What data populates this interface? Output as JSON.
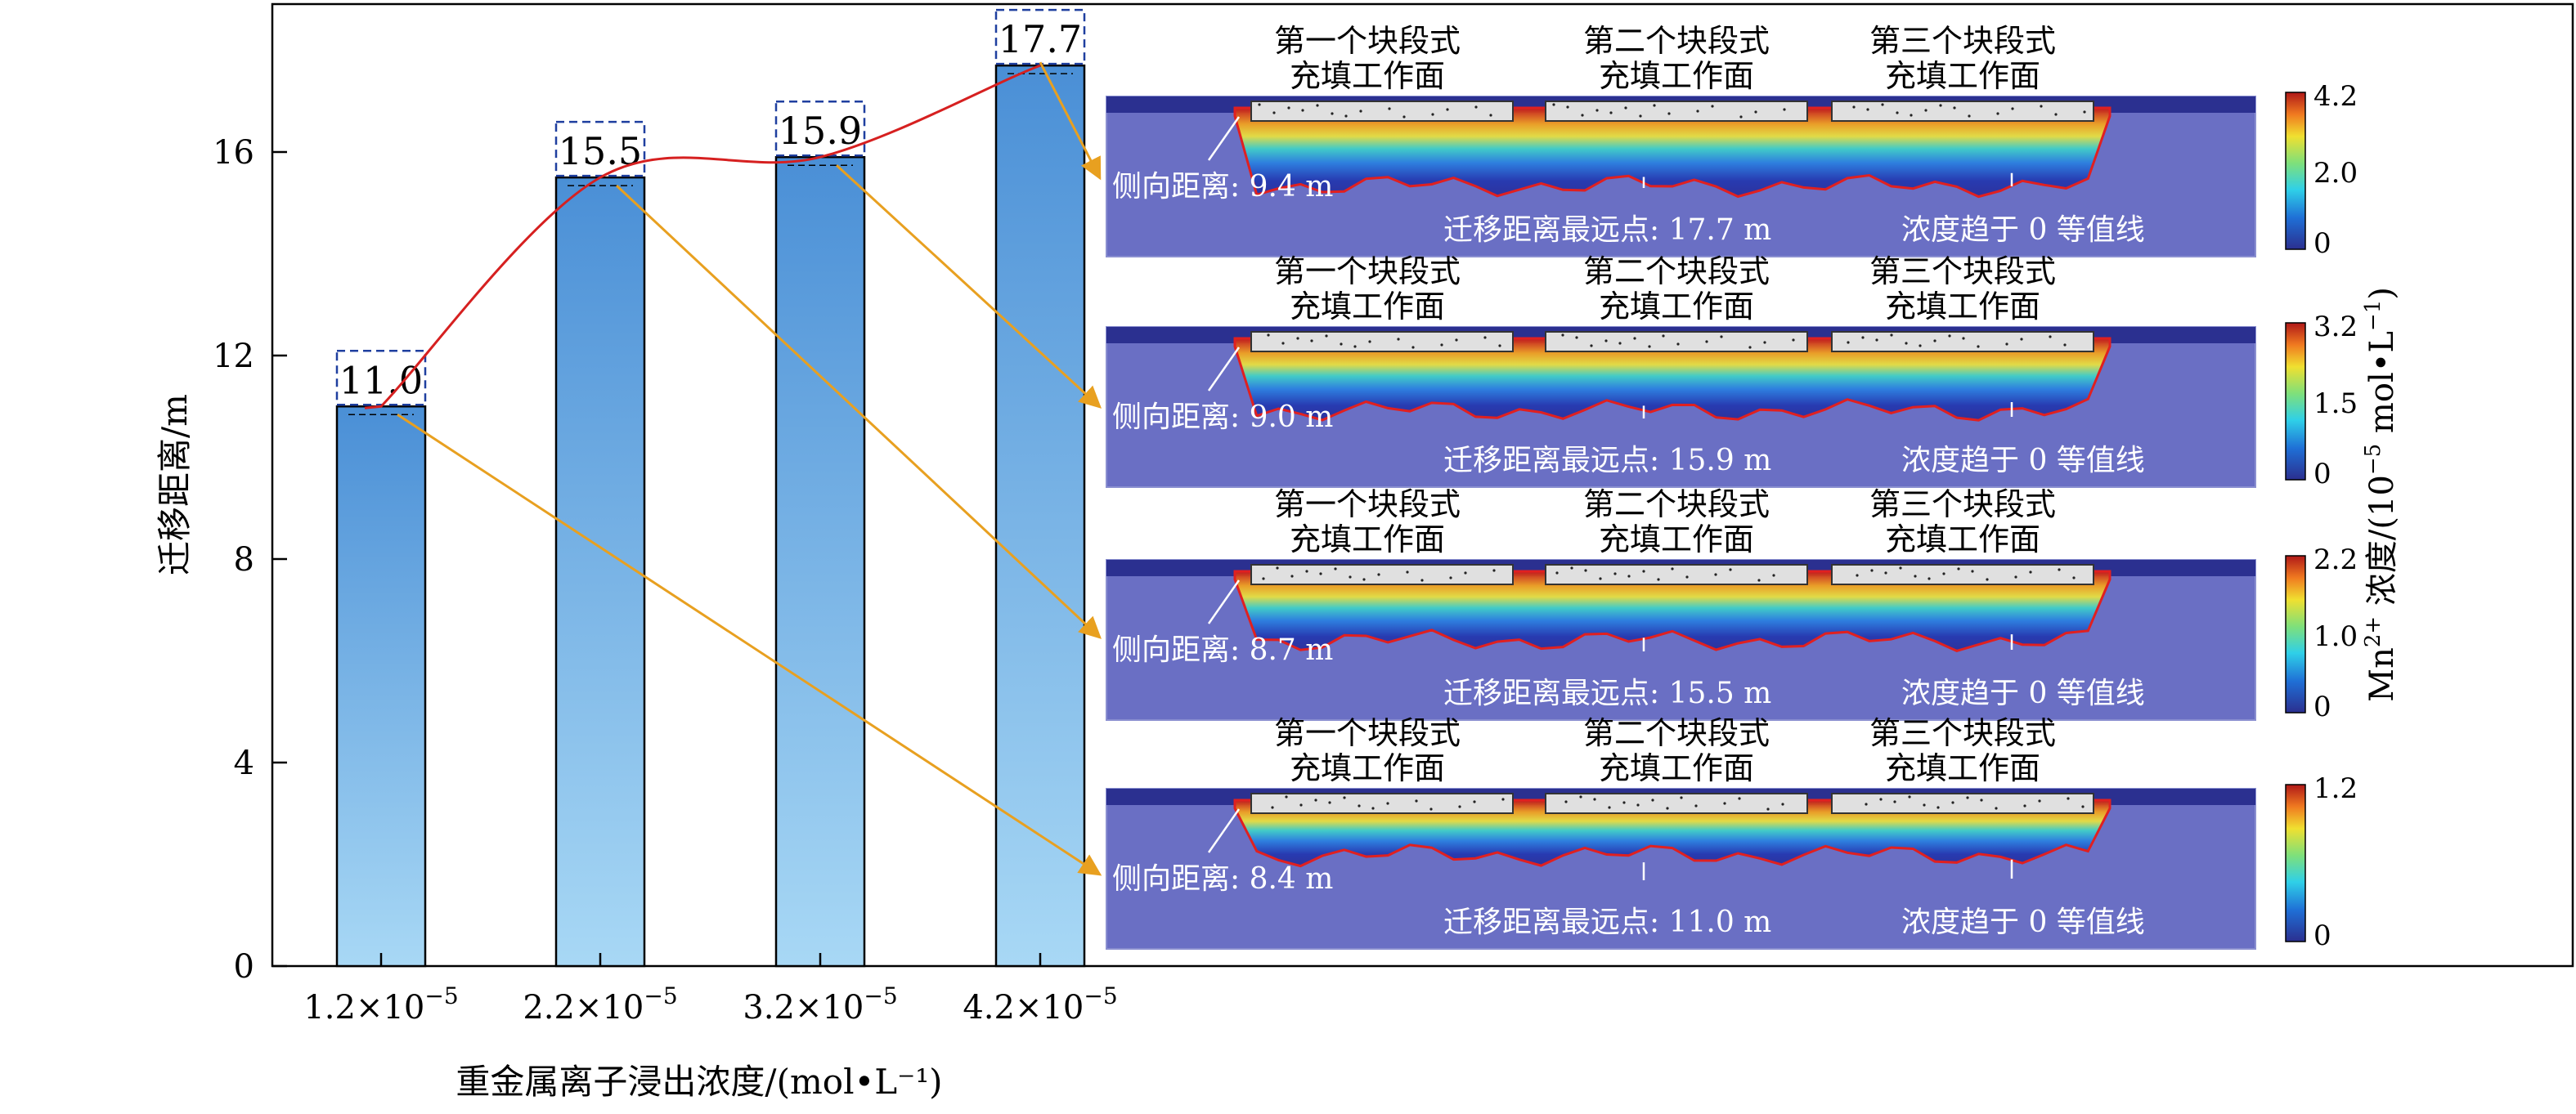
{
  "chart_data": {
    "type": "bar",
    "title": "",
    "xlabel": "重金属离子浸出浓度/(mol•L⁻¹)",
    "ylabel": "迁移距离/m",
    "ylim": [
      0,
      19
    ],
    "yticks": [
      "0",
      "4",
      "8",
      "12",
      "16"
    ],
    "categories": [
      {
        "base": "1.2×10",
        "exp": "−5"
      },
      {
        "base": "2.2×10",
        "exp": "−5"
      },
      {
        "base": "3.2×10",
        "exp": "−5"
      },
      {
        "base": "4.2×10",
        "exp": "−5"
      }
    ],
    "values": [
      11.0,
      15.5,
      15.9,
      17.7
    ],
    "value_labels": [
      "11.0",
      "15.5",
      "15.9",
      "17.7"
    ],
    "colorbar_title": {
      "ion": "Mn",
      "charge": "2+",
      "text": " 浓度/(10",
      "exp": "−5",
      "unit": " mol•L",
      "unit_exp": "−1",
      "close": ")"
    },
    "panels": [
      {
        "faces": [
          {
            "line1": "第一个块段式",
            "line2": "充填工作面"
          },
          {
            "line1": "第二个块段式",
            "line2": "充填工作面"
          },
          {
            "line1": "第三个块段式",
            "line2": "充填工作面"
          }
        ],
        "lateral": "侧向距离: 9.4 m",
        "farthest": "迁移距离最远点: 17.7 m",
        "contour": "浓度趋于 0 等值线",
        "colorbar": [
          "4.2",
          "2.0",
          "0"
        ],
        "intensity": 1.0
      },
      {
        "faces": [
          {
            "line1": "第一个块段式",
            "line2": "充填工作面"
          },
          {
            "line1": "第二个块段式",
            "line2": "充填工作面"
          },
          {
            "line1": "第三个块段式",
            "line2": "充填工作面"
          }
        ],
        "lateral": "侧向距离: 9.0 m",
        "farthest": "迁移距离最远点: 15.9 m",
        "contour": "浓度趋于 0 等值线",
        "colorbar": [
          "3.2",
          "1.5",
          "0"
        ],
        "intensity": 0.9
      },
      {
        "faces": [
          {
            "line1": "第一个块段式",
            "line2": "充填工作面"
          },
          {
            "line1": "第二个块段式",
            "line2": "充填工作面"
          },
          {
            "line1": "第三个块段式",
            "line2": "充填工作面"
          }
        ],
        "lateral": "侧向距离: 8.7 m",
        "farthest": "迁移距离最远点: 15.5 m",
        "contour": "浓度趋于 0 等值线",
        "colorbar": [
          "2.2",
          "1.0",
          "0"
        ],
        "intensity": 0.85
      },
      {
        "faces": [
          {
            "line1": "第一个块段式",
            "line2": "充填工作面"
          },
          {
            "line1": "第二个块段式",
            "line2": "充填工作面"
          },
          {
            "line1": "第三个块段式",
            "line2": "充填工作面"
          }
        ],
        "lateral": "侧向距离: 8.4 m",
        "farthest": "迁移距离最远点: 11.0 m",
        "contour": "浓度趋于 0 等值线",
        "colorbar": [
          "1.2",
          "0"
        ],
        "intensity": 0.6
      }
    ],
    "colors": {
      "bar_top": "#4a8fd6",
      "bar_bottom": "#a8d8f5",
      "trend_line": "#d62020",
      "arrow": "#e8a020",
      "label_box": "#1f3f9f",
      "domain": "#6a6fc4",
      "contour": "#e02020"
    }
  }
}
